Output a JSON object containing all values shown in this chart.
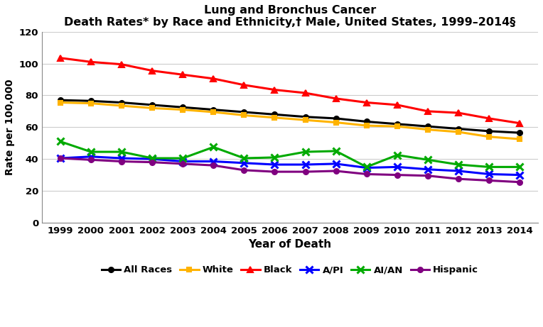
{
  "title_line1": "Lung and Bronchus Cancer",
  "title_line2": "Death Rates* by Race and Ethnicity,† Male, United States, 1999–2014§",
  "xlabel": "Year of Death",
  "ylabel": "Rate per 100,000",
  "years": [
    1999,
    2000,
    2001,
    2002,
    2003,
    2004,
    2005,
    2006,
    2007,
    2008,
    2009,
    2010,
    2011,
    2012,
    2013,
    2014
  ],
  "series": {
    "All Races": {
      "values": [
        77.0,
        76.5,
        75.5,
        74.0,
        72.5,
        71.0,
        69.5,
        68.0,
        66.5,
        65.5,
        63.5,
        62.0,
        60.5,
        59.0,
        57.5,
        56.5
      ],
      "color": "#000000",
      "marker": "o",
      "markersize": 5,
      "linewidth": 2.2
    },
    "White": {
      "values": [
        75.5,
        75.0,
        73.5,
        72.0,
        71.0,
        69.5,
        67.5,
        66.0,
        64.5,
        63.0,
        61.0,
        60.5,
        58.5,
        57.0,
        54.0,
        52.5
      ],
      "color": "#FFB300",
      "marker": "s",
      "markersize": 5,
      "linewidth": 2.2
    },
    "Black": {
      "values": [
        103.5,
        101.0,
        99.5,
        95.5,
        93.0,
        90.5,
        86.5,
        83.5,
        81.5,
        78.0,
        75.5,
        74.0,
        70.0,
        69.0,
        65.5,
        62.5
      ],
      "color": "#FF0000",
      "marker": "^",
      "markersize": 6,
      "linewidth": 2.2
    },
    "A/PI": {
      "values": [
        40.5,
        41.5,
        40.5,
        40.0,
        38.5,
        38.5,
        37.5,
        36.5,
        36.5,
        37.0,
        34.5,
        35.0,
        33.5,
        32.5,
        30.5,
        30.0
      ],
      "color": "#0000FF",
      "marker": "x",
      "markersize": 7,
      "linewidth": 2.2
    },
    "AI/AN": {
      "values": [
        51.0,
        44.5,
        44.5,
        40.5,
        40.5,
        47.5,
        40.5,
        41.0,
        44.5,
        45.0,
        35.0,
        42.5,
        39.5,
        36.5,
        35.0,
        35.0
      ],
      "color": "#00AA00",
      "marker": "x",
      "markersize": 7,
      "linewidth": 2.2
    },
    "Hispanic": {
      "values": [
        40.5,
        39.5,
        38.5,
        38.0,
        37.0,
        36.0,
        33.0,
        32.0,
        32.0,
        32.5,
        30.5,
        30.0,
        29.5,
        27.5,
        26.5,
        25.5
      ],
      "color": "#800080",
      "marker": "o",
      "markersize": 5,
      "linewidth": 2.2
    }
  },
  "series_order": [
    "All Races",
    "White",
    "Black",
    "A/PI",
    "AI/AN",
    "Hispanic"
  ],
  "ylim": [
    0,
    120
  ],
  "yticks": [
    0,
    20,
    40,
    60,
    80,
    100,
    120
  ],
  "background_color": "#FFFFFF",
  "grid_color": "#CCCCCC",
  "title_fontsize": 11.5,
  "axis_label_fontsize": 11,
  "tick_fontsize": 9.5,
  "legend_fontsize": 9.5
}
